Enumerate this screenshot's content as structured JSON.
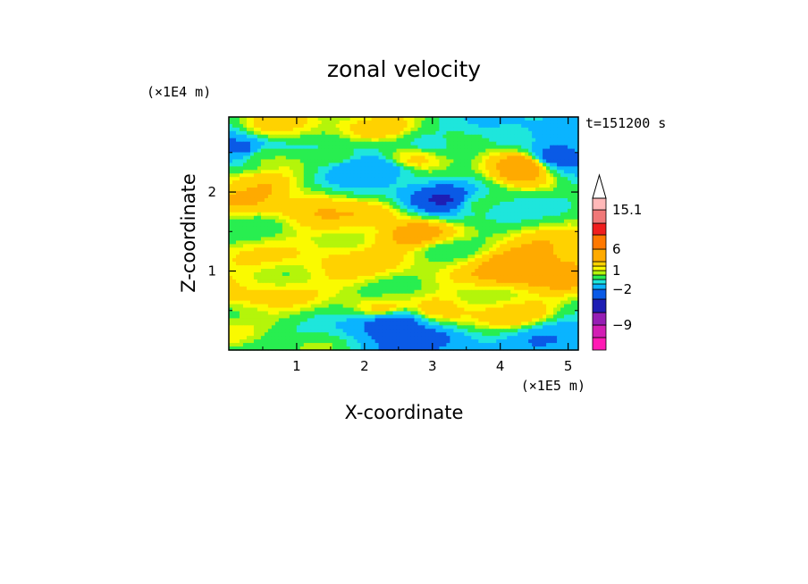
{
  "chart_data": {
    "type": "heatmap",
    "title": "zonal velocity",
    "xlabel": "X-coordinate",
    "ylabel": "Z-coordinate",
    "x_multiplier": "(×1E5 m)",
    "y_multiplier": "(×1E4 m)",
    "time_label": "t=151200 s",
    "x_range": [
      0,
      5.15
    ],
    "y_range": [
      0,
      2.95
    ],
    "x_ticks": [
      "1",
      "2",
      "3",
      "4",
      "5"
    ],
    "y_ticks": [
      "1",
      "2"
    ],
    "colorbar": {
      "extend": "max",
      "labels": [
        "15.1",
        "6",
        "1",
        "-2",
        "-9"
      ],
      "levels": [
        -15,
        -12,
        -9,
        -6,
        -3.5,
        -2,
        -1,
        0,
        0.5,
        1,
        2,
        4,
        6,
        8,
        11,
        15.1
      ],
      "colors": [
        "#ff1ab4",
        "#d21eb4",
        "#961eb4",
        "#1e1eb4",
        "#0a5ae6",
        "#0ab4ff",
        "#1ee6dc",
        "#28ee50",
        "#b4f50a",
        "#fafa00",
        "#ffd200",
        "#ffaa00",
        "#ff7800",
        "#f01e1e",
        "#f07878",
        "#ffb9b9"
      ]
    },
    "features": [
      {
        "x": 0.4,
        "z": 0.4,
        "v": 0.3
      },
      {
        "x": 0.25,
        "z": 0.75,
        "v": 1.2
      },
      {
        "x": 1.7,
        "z": 1.0,
        "v": 1.1
      },
      {
        "x": 2.2,
        "z": 0.55,
        "v": 0.7
      },
      {
        "x": 3.2,
        "z": 0.5,
        "v": 1.2
      },
      {
        "x": 4.2,
        "z": 0.5,
        "v": 1.1
      },
      {
        "x": 2.7,
        "z": 1.45,
        "v": 2.4
      },
      {
        "x": 4.4,
        "z": 1.05,
        "v": 3.2
      },
      {
        "x": 3.1,
        "z": 1.2,
        "v": 0.1
      },
      {
        "x": 1.2,
        "z": 1.85,
        "v": 1.6
      },
      {
        "x": 0.3,
        "z": 1.55,
        "v": 0.1
      },
      {
        "x": 2.1,
        "z": 1.7,
        "v": 1.3
      },
      {
        "x": 3.7,
        "z": 1.85,
        "v": -0.8
      },
      {
        "x": 3.2,
        "z": 1.9,
        "v": -5.5
      },
      {
        "x": 4.3,
        "z": 2.35,
        "v": 3.6
      },
      {
        "x": 4.85,
        "z": 2.45,
        "v": -4.5
      },
      {
        "x": 0.1,
        "z": 2.55,
        "v": -4.0
      },
      {
        "x": 0.6,
        "z": 2.45,
        "v": 0.2
      },
      {
        "x": 1.6,
        "z": 2.45,
        "v": -0.6
      },
      {
        "x": 1.8,
        "z": 2.3,
        "v": -3.5
      },
      {
        "x": 2.25,
        "z": 2.25,
        "v": -3.2
      },
      {
        "x": 2.7,
        "z": 2.45,
        "v": 1.6
      },
      {
        "x": 3.0,
        "z": 2.62,
        "v": -1.2
      },
      {
        "x": 4.1,
        "z": 2.75,
        "v": -2.2
      },
      {
        "x": 0.4,
        "z": 2.05,
        "v": 2.1
      },
      {
        "x": 1.0,
        "z": 0.05,
        "v": -0.5
      },
      {
        "x": 2.8,
        "z": 0.08,
        "v": -4.2
      },
      {
        "x": 2.4,
        "z": 0.35,
        "v": -4.8
      },
      {
        "x": 4.9,
        "z": 0.15,
        "v": -3.0
      },
      {
        "x": 2.2,
        "z": 2.85,
        "v": 1.0
      },
      {
        "x": 0.8,
        "z": 2.8,
        "v": 0.9
      }
    ]
  }
}
